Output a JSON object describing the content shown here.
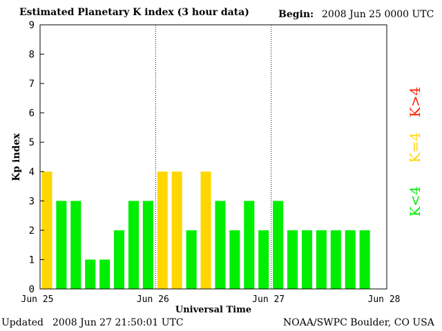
{
  "header": {
    "title": "Estimated Planetary K index (3 hour data)",
    "begin_label": "Begin:",
    "begin_value": "2008 Jun 25 0000 UTC"
  },
  "footer": {
    "updated_label": "Updated",
    "updated_value": "2008 Jun 27 21:50:01 UTC",
    "source": "NOAA/SWPC Boulder, CO USA"
  },
  "chart_data": {
    "type": "bar",
    "title": "Estimated Planetary K index (3 hour data)",
    "xlabel": "Universal Time",
    "ylabel": "Kp index",
    "ylim": [
      0,
      9
    ],
    "yticks": [
      "0",
      "1",
      "2",
      "3",
      "4",
      "5",
      "6",
      "7",
      "8",
      "9"
    ],
    "xticks": [
      "Jun 25",
      "Jun 26",
      "Jun 27",
      "Jun 28"
    ],
    "day_separators": "dotted",
    "bar_interval_hours": 3,
    "values": [
      4,
      3,
      3,
      1,
      1,
      2,
      3,
      3,
      4,
      4,
      2,
      4,
      3,
      2,
      3,
      2,
      3,
      2,
      2,
      2,
      2,
      2,
      2
    ],
    "legend": [
      {
        "label": "K<4",
        "color": "#00ee00"
      },
      {
        "label": "K=4",
        "color": "#ffd700"
      },
      {
        "label": "K>4",
        "color": "#ff2000"
      }
    ],
    "colors": {
      "low": "#00ee00",
      "equal": "#ffd700",
      "high": "#ff2000"
    }
  }
}
